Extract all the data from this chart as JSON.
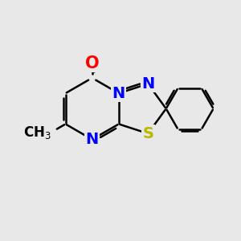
{
  "background_color": "#e8e8e8",
  "bond_color": "#000000",
  "bond_width": 1.8,
  "atom_colors": {
    "O": "#ff0000",
    "N": "#0000ff",
    "S": "#b8b800",
    "C": "#000000"
  },
  "font_size": 14,
  "figsize": [
    3.0,
    3.0
  ],
  "dpi": 100
}
